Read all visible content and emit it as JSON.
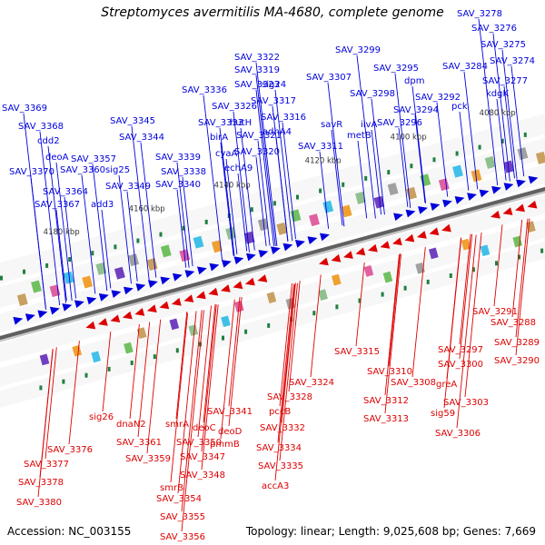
{
  "title": "Streptomyces avermitilis MA-4680, complete genome",
  "accession": "Accession: NC_003155",
  "summary": "Topology: linear; Length: 9,025,608 bp; Genes: 7,669",
  "colors": {
    "forward": "#0000dd",
    "reverse": "#dd0000",
    "backbone": "#606060",
    "tick_text": "#333333"
  },
  "kbp_ticks": [
    "4080 kbp",
    "4100 kbp",
    "4120 kbp",
    "4140 kbp",
    "4160 kbp",
    "4180 kbp"
  ],
  "forward_genes": [
    "SAV_3278",
    "SAV_3276",
    "SAV_3275",
    "SAV_3274",
    "SAV_3277",
    "kdgK",
    "SAV_3284",
    "pck",
    "SAV_3299",
    "SAV_3295",
    "dpm",
    "SAV_3292",
    "SAV_3294",
    "SAV_3296",
    "SAV_3298",
    "ilvA",
    "metB",
    "SAV_3307",
    "savR",
    "SAV_3311",
    "SAV_3322",
    "SAV_3319",
    "sig24",
    "SAV_3323",
    "SAV_3317",
    "SAV_3316",
    "adhA4",
    "SAV_3326",
    "hutH",
    "SAV_3321",
    "SAV_3320",
    "SAV_3336",
    "SAV_3333",
    "birA",
    "cyaA",
    "echA9",
    "SAV_3345",
    "SAV_3344",
    "SAV_3339",
    "SAV_3338",
    "SAV_3340",
    "SAV_3369",
    "SAV_3368",
    "cdd2",
    "deoA",
    "SAV_3357",
    "SAV_3370",
    "SAV_3360",
    "sig25",
    "SAV_3349",
    "SAV_3364",
    "SAV_3367",
    "add3"
  ],
  "reverse_genes": [
    "SAV_3291",
    "SAV_3288",
    "SAV_3289",
    "SAV_3290",
    "SAV_3297",
    "SAV_3300",
    "greA",
    "SAV_3303",
    "sig59",
    "SAV_3306",
    "SAV_3315",
    "SAV_3310",
    "SAV_3308",
    "SAV_3312",
    "SAV_3313",
    "SAV_3324",
    "SAV_3328",
    "pccB",
    "SAV_3332",
    "SAV_3334",
    "SAV_3335",
    "accA3",
    "SAV_3341",
    "deoD",
    "pmmB",
    "deoC",
    "smrA",
    "SAV_3350",
    "SAV_3347",
    "SAV_3348",
    "smrB",
    "SAV_3354",
    "SAV_3355",
    "SAV_3356",
    "dnaN2",
    "SAV_3361",
    "SAV_3359",
    "sig26",
    "SAV_3376",
    "SAV_3377",
    "SAV_3378",
    "SAV_3380"
  ]
}
